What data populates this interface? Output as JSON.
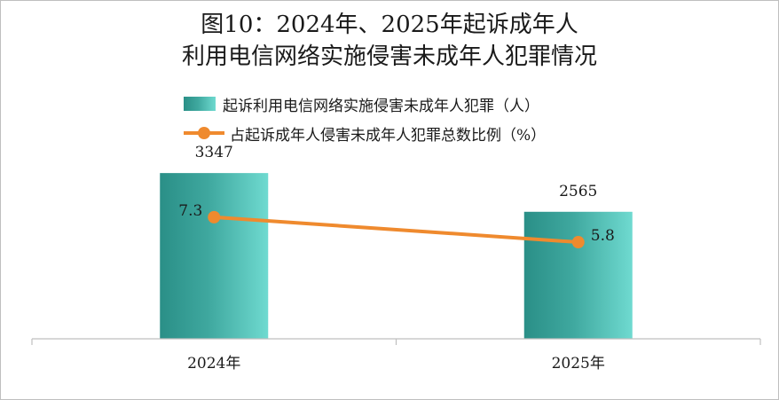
{
  "title": {
    "line1": "图10：2024年、2025年起诉成年人",
    "line2": "利用电信网络实施侵害未成年人犯罪情况"
  },
  "legend": {
    "bar_label": "起诉利用电信网络实施侵害未成年人犯罪（人）",
    "line_label": "占起诉成年人侵害未成年人犯罪总数比例（%）"
  },
  "colors": {
    "bar_dark": "#2a8f87",
    "bar_light": "#6fdad0",
    "line": "#ef8a2e",
    "axis": "#bfbfbf"
  },
  "chart_data": {
    "type": "bar",
    "categories": [
      "2024年",
      "2025年"
    ],
    "series": [
      {
        "name": "起诉利用电信网络实施侵害未成年人犯罪（人）",
        "type": "bar",
        "values": [
          3347,
          2565
        ],
        "labels": [
          "3347",
          "2565"
        ]
      },
      {
        "name": "占起诉成年人侵害未成年人犯罪总数比例（%）",
        "type": "line",
        "values": [
          7.3,
          5.8
        ],
        "labels": [
          "7.3",
          "5.8"
        ]
      }
    ],
    "bar_ylim": [
      0,
      3600
    ],
    "line_ylim": [
      0,
      10.7
    ],
    "grid": false,
    "legend_position": "top"
  }
}
